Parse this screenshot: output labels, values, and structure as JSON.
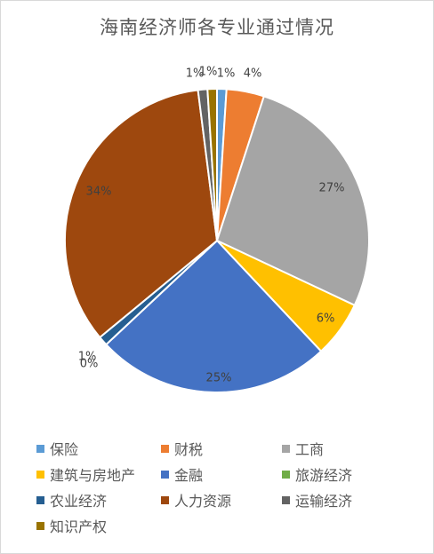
{
  "chart_data": {
    "type": "pie",
    "title": "海南经济师各专业通过情况",
    "categories": [
      "保险",
      "财税",
      "工商",
      "建筑与房地产",
      "金融",
      "旅游经济",
      "农业经济",
      "人力资源",
      "运输经济",
      "知识产权"
    ],
    "values": [
      1,
      4,
      27,
      6,
      25,
      0,
      1,
      34,
      1,
      1
    ],
    "colors": [
      "#5B9BD5",
      "#ED7D31",
      "#A5A5A5",
      "#FFC000",
      "#4472C4",
      "#70AD47",
      "#255E91",
      "#9E480E",
      "#636363",
      "#997300"
    ],
    "data_labels": [
      "1%",
      "4%",
      "27%",
      "6%",
      "25%",
      "0%",
      "1%",
      "34%",
      "1%",
      "1%"
    ],
    "legend_position": "bottom"
  }
}
